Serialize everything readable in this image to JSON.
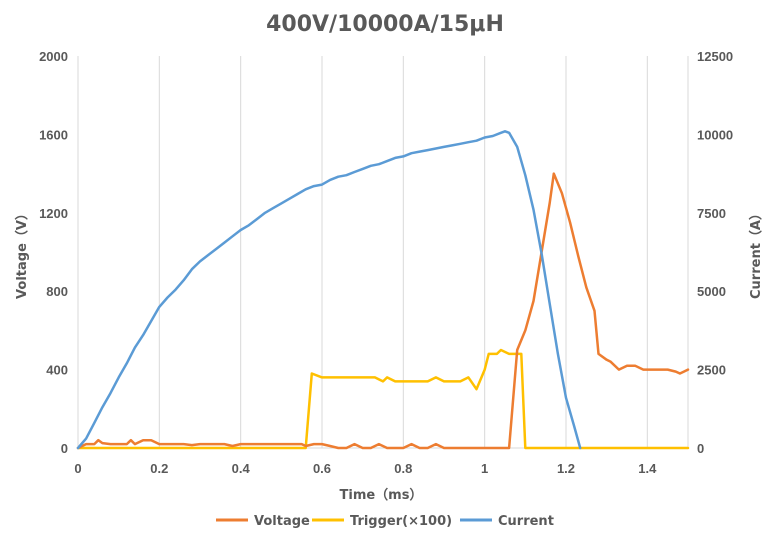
{
  "chart_data": {
    "type": "line",
    "title": "400V/10000A/15μH",
    "xlabel": "Time（ms）",
    "ylabel_left": "Voltage（V）",
    "ylabel_right": "Current（A）",
    "xlim": [
      0,
      1.5
    ],
    "ylim_left": [
      0,
      2000
    ],
    "ylim_right": [
      0,
      12500
    ],
    "x_ticks": [
      "0",
      "0.2",
      "0.4",
      "0.6",
      "0.8",
      "1",
      "1.2",
      "1.4"
    ],
    "y_left_ticks": [
      "0",
      "400",
      "800",
      "1200",
      "1600",
      "2000"
    ],
    "y_right_ticks": [
      "0",
      "2500",
      "5000",
      "7500",
      "10000",
      "12500"
    ],
    "grid": "vertical",
    "legend_position": "bottom",
    "colors": {
      "Voltage": "#ed7d31",
      "Trigger": "#ffc000",
      "Current": "#5b9bd5"
    },
    "series": [
      {
        "name": "Voltage",
        "axis": "left",
        "color": "#ed7d31",
        "points": [
          [
            0,
            0
          ],
          [
            0.02,
            20
          ],
          [
            0.04,
            20
          ],
          [
            0.05,
            40
          ],
          [
            0.06,
            25
          ],
          [
            0.08,
            20
          ],
          [
            0.1,
            20
          ],
          [
            0.12,
            20
          ],
          [
            0.13,
            40
          ],
          [
            0.14,
            20
          ],
          [
            0.16,
            40
          ],
          [
            0.18,
            40
          ],
          [
            0.2,
            20
          ],
          [
            0.22,
            20
          ],
          [
            0.24,
            20
          ],
          [
            0.26,
            20
          ],
          [
            0.28,
            15
          ],
          [
            0.3,
            20
          ],
          [
            0.32,
            20
          ],
          [
            0.34,
            20
          ],
          [
            0.36,
            20
          ],
          [
            0.38,
            10
          ],
          [
            0.4,
            20
          ],
          [
            0.44,
            20
          ],
          [
            0.48,
            20
          ],
          [
            0.52,
            20
          ],
          [
            0.55,
            20
          ],
          [
            0.56,
            10
          ],
          [
            0.58,
            20
          ],
          [
            0.6,
            20
          ],
          [
            0.62,
            10
          ],
          [
            0.64,
            0
          ],
          [
            0.66,
            0
          ],
          [
            0.68,
            20
          ],
          [
            0.7,
            0
          ],
          [
            0.72,
            0
          ],
          [
            0.74,
            20
          ],
          [
            0.76,
            0
          ],
          [
            0.8,
            0
          ],
          [
            0.82,
            20
          ],
          [
            0.84,
            0
          ],
          [
            0.86,
            0
          ],
          [
            0.88,
            20
          ],
          [
            0.9,
            0
          ],
          [
            0.95,
            0
          ],
          [
            1.0,
            0
          ],
          [
            1.05,
            0
          ],
          [
            1.06,
            0
          ],
          [
            1.08,
            500
          ],
          [
            1.1,
            600
          ],
          [
            1.12,
            750
          ],
          [
            1.14,
            1000
          ],
          [
            1.16,
            1250
          ],
          [
            1.17,
            1400
          ],
          [
            1.19,
            1300
          ],
          [
            1.21,
            1150
          ],
          [
            1.23,
            980
          ],
          [
            1.25,
            820
          ],
          [
            1.27,
            700
          ],
          [
            1.28,
            480
          ],
          [
            1.3,
            450
          ],
          [
            1.31,
            440
          ],
          [
            1.33,
            400
          ],
          [
            1.35,
            420
          ],
          [
            1.37,
            420
          ],
          [
            1.39,
            400
          ],
          [
            1.42,
            400
          ],
          [
            1.45,
            400
          ],
          [
            1.47,
            390
          ],
          [
            1.48,
            380
          ],
          [
            1.49,
            390
          ],
          [
            1.5,
            400
          ]
        ]
      },
      {
        "name": "Trigger(×100)",
        "axis": "left",
        "color": "#ffc000",
        "points": [
          [
            0,
            0
          ],
          [
            0.56,
            0
          ],
          [
            0.575,
            380
          ],
          [
            0.6,
            360
          ],
          [
            0.65,
            360
          ],
          [
            0.7,
            360
          ],
          [
            0.73,
            360
          ],
          [
            0.75,
            340
          ],
          [
            0.76,
            360
          ],
          [
            0.78,
            340
          ],
          [
            0.82,
            340
          ],
          [
            0.86,
            340
          ],
          [
            0.88,
            360
          ],
          [
            0.9,
            340
          ],
          [
            0.94,
            340
          ],
          [
            0.96,
            360
          ],
          [
            0.98,
            300
          ],
          [
            1.0,
            400
          ],
          [
            1.01,
            480
          ],
          [
            1.03,
            480
          ],
          [
            1.04,
            500
          ],
          [
            1.06,
            480
          ],
          [
            1.09,
            480
          ],
          [
            1.1,
            0
          ],
          [
            1.18,
            0
          ],
          [
            1.25,
            0
          ],
          [
            1.3,
            0
          ],
          [
            1.4,
            0
          ],
          [
            1.5,
            0
          ]
        ]
      },
      {
        "name": "Current",
        "axis": "right",
        "color": "#5b9bd5",
        "points": [
          [
            0,
            0
          ],
          [
            0.02,
            300
          ],
          [
            0.04,
            800
          ],
          [
            0.06,
            1300
          ],
          [
            0.08,
            1750
          ],
          [
            0.1,
            2250
          ],
          [
            0.12,
            2700
          ],
          [
            0.14,
            3200
          ],
          [
            0.16,
            3600
          ],
          [
            0.18,
            4050
          ],
          [
            0.2,
            4500
          ],
          [
            0.22,
            4800
          ],
          [
            0.24,
            5050
          ],
          [
            0.26,
            5350
          ],
          [
            0.28,
            5700
          ],
          [
            0.3,
            5950
          ],
          [
            0.32,
            6150
          ],
          [
            0.34,
            6350
          ],
          [
            0.36,
            6550
          ],
          [
            0.38,
            6750
          ],
          [
            0.4,
            6950
          ],
          [
            0.42,
            7100
          ],
          [
            0.44,
            7300
          ],
          [
            0.46,
            7500
          ],
          [
            0.48,
            7650
          ],
          [
            0.5,
            7800
          ],
          [
            0.52,
            7950
          ],
          [
            0.54,
            8100
          ],
          [
            0.56,
            8250
          ],
          [
            0.58,
            8350
          ],
          [
            0.6,
            8400
          ],
          [
            0.62,
            8550
          ],
          [
            0.64,
            8650
          ],
          [
            0.66,
            8700
          ],
          [
            0.68,
            8800
          ],
          [
            0.7,
            8900
          ],
          [
            0.72,
            9000
          ],
          [
            0.74,
            9050
          ],
          [
            0.76,
            9150
          ],
          [
            0.78,
            9250
          ],
          [
            0.8,
            9300
          ],
          [
            0.82,
            9400
          ],
          [
            0.84,
            9450
          ],
          [
            0.86,
            9500
          ],
          [
            0.88,
            9550
          ],
          [
            0.9,
            9600
          ],
          [
            0.92,
            9650
          ],
          [
            0.94,
            9700
          ],
          [
            0.96,
            9750
          ],
          [
            0.98,
            9800
          ],
          [
            1.0,
            9900
          ],
          [
            1.02,
            9950
          ],
          [
            1.04,
            10050
          ],
          [
            1.05,
            10100
          ],
          [
            1.06,
            10050
          ],
          [
            1.08,
            9600
          ],
          [
            1.1,
            8700
          ],
          [
            1.12,
            7600
          ],
          [
            1.14,
            6200
          ],
          [
            1.16,
            4600
          ],
          [
            1.18,
            3000
          ],
          [
            1.2,
            1600
          ],
          [
            1.22,
            700
          ],
          [
            1.235,
            0
          ]
        ]
      }
    ]
  }
}
